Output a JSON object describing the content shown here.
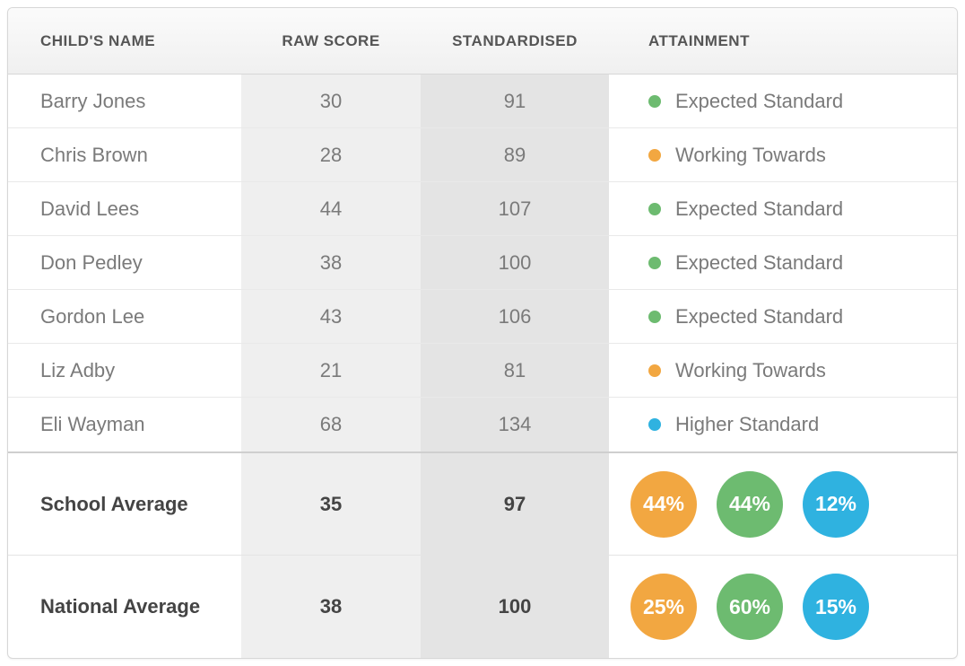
{
  "colors": {
    "expected": "#6dbb70",
    "working": "#f2a741",
    "higher": "#2fb2e0",
    "header_text": "#555555",
    "body_text": "#7a7a7a",
    "bold_text": "#444444",
    "col_raw_bg": "#efefef",
    "col_std_bg": "#e4e4e4",
    "border": "#d7d7d7"
  },
  "columns": {
    "name": "CHILD'S NAME",
    "raw": "RAW SCORE",
    "std": "STANDARDISED",
    "att": "ATTAINMENT"
  },
  "attainment_labels": {
    "expected": "Expected Standard",
    "working": "Working Towards",
    "higher": "Higher Standard"
  },
  "rows": [
    {
      "name": "Barry Jones",
      "raw": "30",
      "std": "91",
      "att": "expected"
    },
    {
      "name": "Chris Brown",
      "raw": "28",
      "std": "89",
      "att": "working"
    },
    {
      "name": "David Lees",
      "raw": "44",
      "std": "107",
      "att": "expected"
    },
    {
      "name": "Don Pedley",
      "raw": "38",
      "std": "100",
      "att": "expected"
    },
    {
      "name": "Gordon Lee",
      "raw": "43",
      "std": "106",
      "att": "expected"
    },
    {
      "name": "Liz Adby",
      "raw": "21",
      "std": "81",
      "att": "working"
    },
    {
      "name": "Eli Wayman",
      "raw": "68",
      "std": "134",
      "att": "higher"
    }
  ],
  "summary": [
    {
      "label": "School Average",
      "raw": "35",
      "std": "97",
      "balls": [
        {
          "pct": "44%",
          "key": "working"
        },
        {
          "pct": "44%",
          "key": "expected"
        },
        {
          "pct": "12%",
          "key": "higher"
        }
      ]
    },
    {
      "label": "National Average",
      "raw": "38",
      "std": "100",
      "balls": [
        {
          "pct": "25%",
          "key": "working"
        },
        {
          "pct": "60%",
          "key": "expected"
        },
        {
          "pct": "15%",
          "key": "higher"
        }
      ]
    }
  ]
}
